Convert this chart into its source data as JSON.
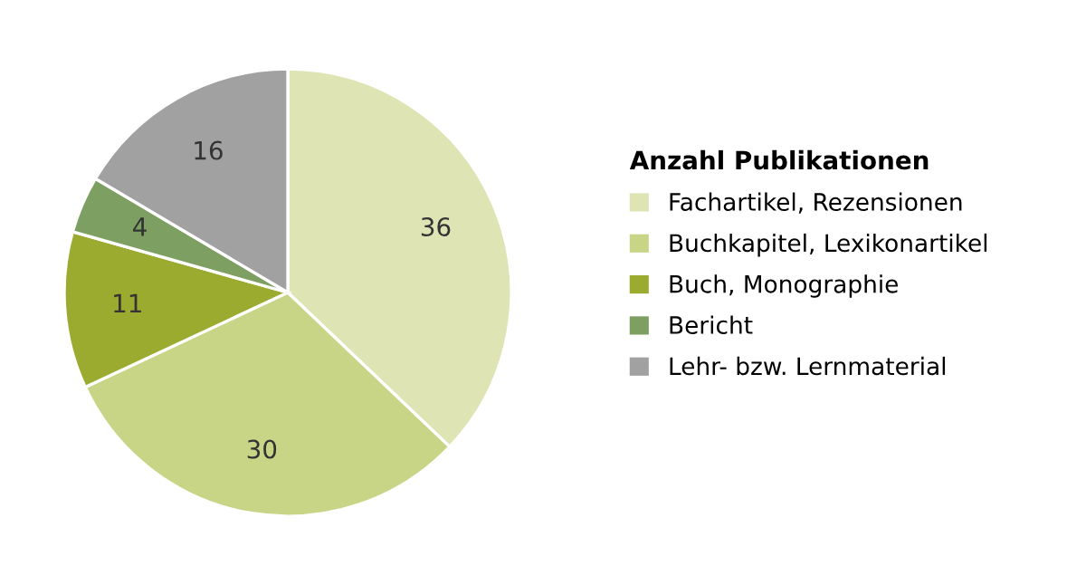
{
  "chart_data": {
    "type": "pie",
    "legend_title": "Anzahl Publikationen",
    "categories": [
      "Fachartikel, Rezensionen",
      "Buchkapitel, Lexikonartikel",
      "Buch, Monographie",
      "Bericht",
      "Lehr- bzw. Lernmaterial"
    ],
    "values": [
      36,
      30,
      11,
      4,
      16
    ],
    "colors": [
      "#dfe4b4",
      "#c8d587",
      "#9bab2f",
      "#7e9f62",
      "#a1a1a1"
    ],
    "data_labels": true,
    "legend": "right"
  }
}
